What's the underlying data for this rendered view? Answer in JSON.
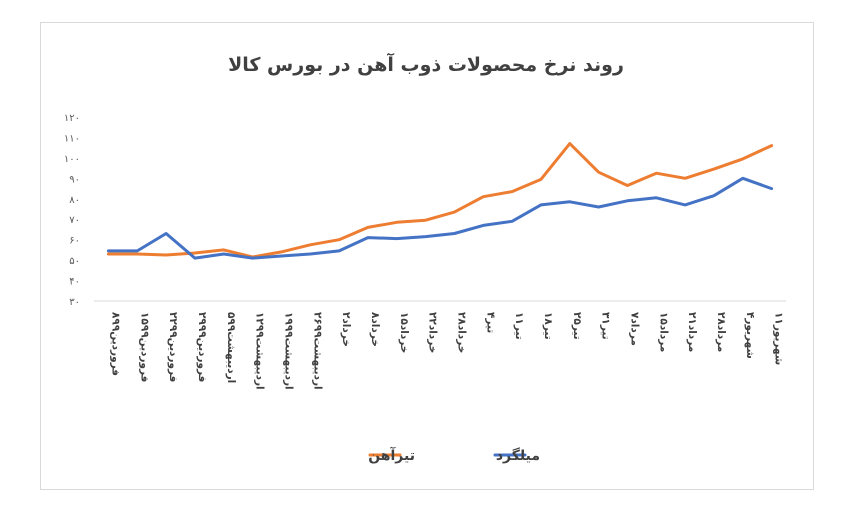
{
  "chart_data": {
    "type": "line",
    "title": "روند نرخ محصولات ذوب آهن در بورس کالا",
    "xlabel": "",
    "ylabel": "",
    "ylim": [
      30,
      120
    ],
    "yticks": [
      30,
      40,
      50,
      60,
      70,
      80,
      90,
      100,
      110,
      120
    ],
    "ytick_labels": [
      "۳۰",
      "۴۰",
      "۵۰",
      "۶۰",
      "۷۰",
      "۸۰",
      "۹۰",
      "۱۰۰",
      "۱۱۰",
      "۱۲۰"
    ],
    "grid": false,
    "legend": "bottom",
    "categories": [
      "۸فروردین۹۹",
      "۱۵فروردین۹۹",
      "۲۲فروردین۹۹",
      "۲۹فروردین۹۹",
      "۵اردیبهشت۹۹",
      "۱۲اردیبهشت۹۹",
      "۱۹اردیبهشت۹۹",
      "۲۶اردیبهشت۹۹",
      "۲خرداد",
      "۸خرداد",
      "۱۵خرداد",
      "۲۲خرداد",
      "۲۸خرداد",
      "۴تیر",
      "۱۱تیر",
      "۱۸تیر",
      "۲۵تیر",
      "۳۱تیر",
      "۷مرداد",
      "۱۵مرداد",
      "۲۱مرداد",
      "۲۸مرداد",
      "۴شهریور",
      "۱۱شهریور"
    ],
    "series": [
      {
        "name": "تیرآهن",
        "color": "#ED7D31",
        "values": [
          53,
          53,
          52.5,
          53.5,
          55,
          51.5,
          54,
          57.5,
          60,
          66,
          68.5,
          69.5,
          73.5,
          81,
          83.5,
          89.5,
          107,
          93,
          86.5,
          92.5,
          90,
          94.5,
          99.5,
          106
        ]
      },
      {
        "name": "میلگرد",
        "color": "#4472C4",
        "values": [
          54.5,
          54.5,
          63,
          51,
          53,
          51,
          52,
          53,
          54.5,
          61,
          60.5,
          61.5,
          63,
          67,
          69,
          77,
          78.5,
          76,
          79,
          80.5,
          77,
          81.5,
          90,
          85
        ]
      }
    ]
  }
}
